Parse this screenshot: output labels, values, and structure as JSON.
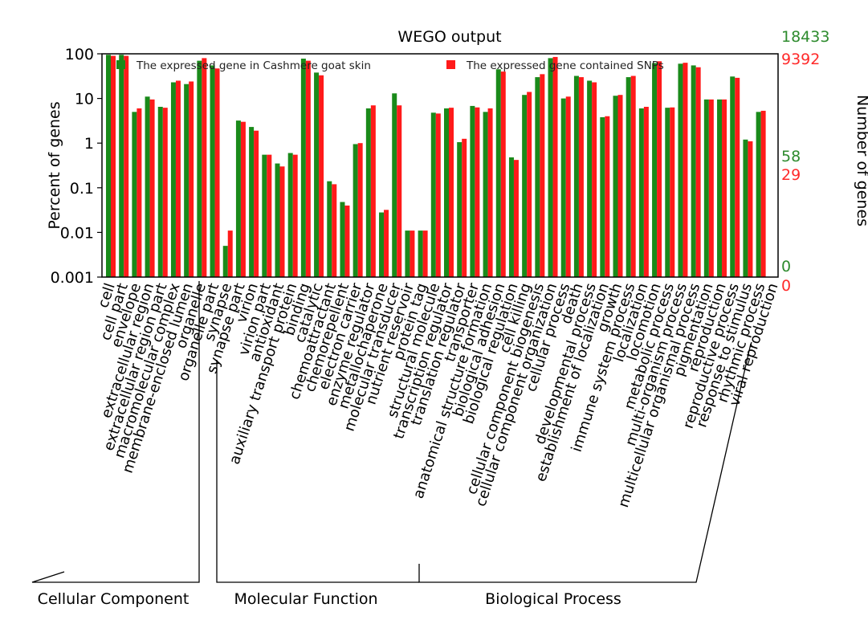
{
  "chart_data": {
    "type": "bar",
    "title": "WEGO output",
    "ylabel_left": "Percent of genes",
    "ylabel_right": "Number of genes",
    "y_scale": "log",
    "ylim": [
      0.001,
      100
    ],
    "y_ticks": [
      "100",
      "10",
      "1",
      "0.1",
      "0.01",
      "0.001"
    ],
    "right_ticks": [
      {
        "value": "18433",
        "color": "green"
      },
      {
        "value": "9392",
        "color": "red"
      },
      {
        "value": "58",
        "color": "green"
      },
      {
        "value": "29",
        "color": "red"
      },
      {
        "value": "0",
        "color": "green"
      },
      {
        "value": "0",
        "color": "red"
      }
    ],
    "legend_position": "top",
    "colors": {
      "green": "#1a8a1a",
      "red": "#ff1a1a",
      "green_text": "#2e8b2e",
      "red_text": "#ff2a2a"
    },
    "series": [
      {
        "name": "The expressed gene in Cashmere goat skin",
        "color": "green"
      },
      {
        "name": "The expressed gene contained SNPs",
        "color": "red"
      }
    ],
    "categories": [
      "cell",
      "cell part",
      "envelope",
      "extracellular region",
      "extracellular region part",
      "macromolecular complex",
      "membrane-enclosed lumen",
      "organelle",
      "organelle part",
      "synapse",
      "synapse part",
      "virion",
      "virion part",
      "antioxidant",
      "auxiliary transport protein",
      "binding",
      "catalytic",
      "chemoattractant",
      "chemorepellent",
      "electron carrier",
      "enzyme regulator",
      "metallochaperone",
      "molecular transducer",
      "nutrient reservoir",
      "protein tag",
      "structural molecule",
      "transcription regulator",
      "translation regulator",
      "transporter",
      "anatomical structure formation",
      "biological adhesion",
      "biological regulation",
      "cell killing",
      "cellular component biogenesis",
      "cellular component organization",
      "cellular process",
      "death",
      "developmental process",
      "establishment of localization",
      "growth",
      "immune system process",
      "localization",
      "locomotion",
      "metabolic process",
      "multi-organism process",
      "multicellular organismal process",
      "pigmentation",
      "reproduction",
      "reproductive process",
      "response to stimulus",
      "rhythmic process",
      "viral reproduction"
    ],
    "values_percent": {
      "green": [
        95,
        95,
        5,
        11,
        6.5,
        23,
        21,
        70,
        55,
        0.005,
        3.2,
        2.3,
        0.55,
        0.35,
        0.6,
        78,
        38,
        0.14,
        0.048,
        0.95,
        6,
        0.028,
        13,
        0.011,
        0.011,
        4.8,
        6,
        1.05,
        6.8,
        5,
        45,
        0.48,
        12,
        30,
        80,
        10,
        32,
        25,
        3.8,
        11.5,
        30,
        6,
        62,
        6.2,
        60,
        55,
        9.5,
        9.5,
        31,
        1.2,
        5,
        0
      ],
      "red": [
        90,
        90,
        6,
        9.5,
        6.2,
        25,
        24,
        80,
        47,
        0.011,
        3.0,
        1.9,
        0.55,
        0.3,
        0.55,
        70,
        33,
        0.12,
        0.04,
        1.0,
        7,
        0.032,
        7,
        0.011,
        0.011,
        4.6,
        6.2,
        1.25,
        6.3,
        6,
        40,
        0.42,
        14,
        35,
        85,
        11,
        30,
        23,
        4.0,
        12,
        32,
        6.5,
        68,
        6.3,
        63,
        50,
        9.5,
        9.5,
        29,
        1.1,
        5.3,
        0
      ]
    },
    "groups": [
      {
        "label": "Cellular Component",
        "start": 0,
        "end": 12
      },
      {
        "label": "Molecular Function",
        "start": 13,
        "end": 28
      },
      {
        "label": "Biological Process",
        "start": 29,
        "end": 51
      }
    ]
  }
}
